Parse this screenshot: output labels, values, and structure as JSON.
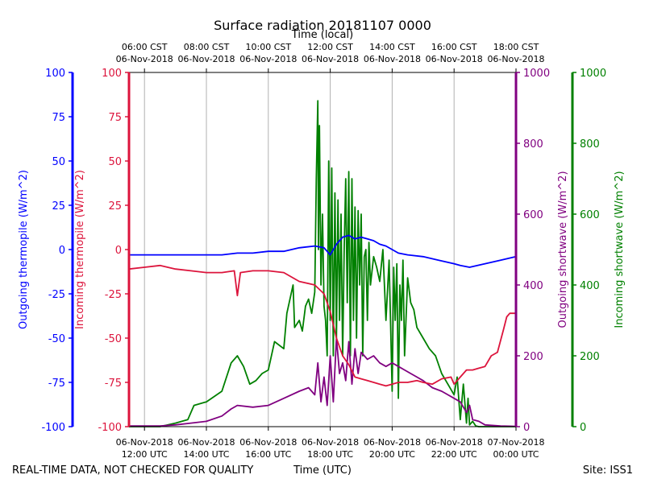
{
  "colors": {
    "outgoing_thermopile": "#0000ff",
    "incoming_thermopile": "#dc143c",
    "outgoing_shortwave": "#800080",
    "incoming_shortwave": "#008000",
    "grid": "#b0b0b0",
    "text": "#000000"
  },
  "footer": {
    "left": "REAL-TIME DATA, NOT CHECKED FOR QUALITY",
    "right": "Site: ISS1"
  },
  "chart_data": {
    "type": "line",
    "title": "Surface radiation 20181107 0000",
    "xlabel": "Time (UTC)",
    "x2label": "Time (local)",
    "x_domain_utc_hours": [
      11.5,
      24.0
    ],
    "bottom_ticks": [
      {
        "hour": 12,
        "line1": "06-Nov-2018",
        "line2": "12:00 UTC"
      },
      {
        "hour": 14,
        "line1": "06-Nov-2018",
        "line2": "14:00 UTC"
      },
      {
        "hour": 16,
        "line1": "06-Nov-2018",
        "line2": "16:00 UTC"
      },
      {
        "hour": 18,
        "line1": "06-Nov-2018",
        "line2": "18:00 UTC"
      },
      {
        "hour": 20,
        "line1": "06-Nov-2018",
        "line2": "20:00 UTC"
      },
      {
        "hour": 22,
        "line1": "06-Nov-2018",
        "line2": "22:00 UTC"
      },
      {
        "hour": 24,
        "line1": "07-Nov-2018",
        "line2": "00:00 UTC"
      }
    ],
    "top_ticks": [
      {
        "hour": 12,
        "line1": "06:00 CST",
        "line2": "06-Nov-2018"
      },
      {
        "hour": 14,
        "line1": "08:00 CST",
        "line2": "06-Nov-2018"
      },
      {
        "hour": 16,
        "line1": "10:00 CST",
        "line2": "06-Nov-2018"
      },
      {
        "hour": 18,
        "line1": "12:00 CST",
        "line2": "06-Nov-2018"
      },
      {
        "hour": 20,
        "line1": "14:00 CST",
        "line2": "06-Nov-2018"
      },
      {
        "hour": 22,
        "line1": "16:00 CST",
        "line2": "06-Nov-2018"
      },
      {
        "hour": 24,
        "line1": "18:00 CST",
        "line2": "06-Nov-2018"
      }
    ],
    "axes": {
      "outgoing_thermopile": {
        "label": "Outgoing thermopile (W/m^2)",
        "ylim": [
          -100,
          100
        ],
        "ticks": [
          -100,
          -75,
          -50,
          -25,
          0,
          25,
          50,
          75,
          100
        ]
      },
      "incoming_thermopile": {
        "label": "Incoming thermopile (W/m^2)",
        "ylim": [
          -100,
          100
        ],
        "ticks": [
          -100,
          -75,
          -50,
          -25,
          0,
          25,
          50,
          75,
          100
        ]
      },
      "outgoing_shortwave": {
        "label": "Outgoing shortwave (W/m^2)",
        "ylim": [
          0,
          1000
        ],
        "ticks": [
          0,
          200,
          400,
          600,
          800,
          1000
        ]
      },
      "incoming_shortwave": {
        "label": "Incoming shortwave (W/m^2)",
        "ylim": [
          0,
          1000
        ],
        "ticks": [
          0,
          200,
          400,
          600,
          800,
          1000
        ]
      }
    },
    "series": [
      {
        "name": "Incoming shortwave",
        "axis": "incoming_shortwave",
        "x": [
          11.5,
          12.5,
          13.0,
          13.4,
          13.6,
          14.0,
          14.5,
          14.8,
          15.0,
          15.2,
          15.4,
          15.6,
          15.8,
          16.0,
          16.2,
          16.5,
          16.6,
          16.8,
          16.85,
          17.0,
          17.1,
          17.2,
          17.3,
          17.4,
          17.5,
          17.55,
          17.6,
          17.62,
          17.65,
          17.7,
          17.75,
          17.8,
          17.85,
          17.9,
          17.95,
          18.0,
          18.05,
          18.1,
          18.15,
          18.2,
          18.25,
          18.3,
          18.35,
          18.4,
          18.45,
          18.5,
          18.55,
          18.6,
          18.65,
          18.7,
          18.75,
          18.8,
          18.85,
          18.9,
          18.95,
          19.0,
          19.05,
          19.1,
          19.15,
          19.2,
          19.25,
          19.3,
          19.4,
          19.5,
          19.6,
          19.7,
          19.8,
          19.9,
          20.0,
          20.05,
          20.1,
          20.15,
          20.2,
          20.25,
          20.3,
          20.35,
          20.4,
          20.5,
          20.6,
          20.7,
          20.8,
          21.0,
          21.2,
          21.4,
          21.6,
          21.8,
          22.0,
          22.1,
          22.2,
          22.3,
          22.4,
          22.45,
          22.5,
          22.6,
          22.7,
          22.8,
          23.0,
          23.5,
          24.0
        ],
        "values": [
          0,
          0,
          10,
          20,
          60,
          70,
          100,
          180,
          200,
          170,
          120,
          130,
          150,
          160,
          240,
          220,
          320,
          400,
          280,
          300,
          270,
          340,
          360,
          320,
          380,
          700,
          920,
          500,
          850,
          400,
          600,
          340,
          300,
          200,
          750,
          300,
          730,
          200,
          660,
          250,
          640,
          300,
          600,
          200,
          500,
          700,
          350,
          720,
          200,
          700,
          300,
          620,
          250,
          610,
          400,
          600,
          200,
          480,
          500,
          300,
          520,
          400,
          480,
          450,
          410,
          500,
          300,
          470,
          100,
          450,
          300,
          460,
          80,
          400,
          300,
          470,
          200,
          420,
          350,
          330,
          280,
          250,
          220,
          200,
          150,
          120,
          90,
          140,
          20,
          120,
          10,
          80,
          5,
          15,
          2,
          0,
          0,
          0,
          0
        ]
      },
      {
        "name": "Outgoing shortwave",
        "axis": "outgoing_shortwave",
        "x": [
          11.5,
          12.5,
          13.0,
          13.5,
          14.0,
          14.5,
          14.8,
          15.0,
          15.5,
          16.0,
          16.5,
          17.0,
          17.3,
          17.5,
          17.6,
          17.7,
          17.8,
          17.9,
          18.0,
          18.1,
          18.2,
          18.3,
          18.4,
          18.5,
          18.6,
          18.7,
          18.8,
          18.9,
          19.0,
          19.2,
          19.4,
          19.6,
          19.8,
          20.0,
          20.2,
          20.4,
          20.6,
          20.8,
          21.0,
          21.3,
          21.6,
          21.8,
          22.0,
          22.2,
          22.4,
          22.5,
          22.6,
          22.8,
          23.0,
          23.5,
          24.0
        ],
        "values": [
          2,
          2,
          5,
          10,
          15,
          30,
          50,
          60,
          55,
          60,
          80,
          100,
          110,
          90,
          180,
          70,
          140,
          60,
          200,
          70,
          250,
          150,
          180,
          130,
          240,
          120,
          220,
          150,
          210,
          190,
          200,
          180,
          170,
          180,
          170,
          160,
          150,
          140,
          130,
          110,
          100,
          90,
          80,
          70,
          40,
          60,
          20,
          15,
          5,
          2,
          1
        ]
      },
      {
        "name": "Incoming thermopile",
        "axis": "incoming_thermopile",
        "x": [
          11.5,
          12.0,
          12.5,
          13.0,
          13.5,
          14.0,
          14.5,
          14.9,
          15.0,
          15.1,
          15.5,
          16.0,
          16.5,
          17.0,
          17.5,
          17.8,
          18.0,
          18.2,
          18.4,
          18.6,
          18.8,
          19.0,
          19.2,
          19.4,
          19.6,
          19.8,
          20.0,
          20.2,
          20.5,
          20.8,
          21.0,
          21.3,
          21.6,
          21.9,
          22.0,
          22.2,
          22.4,
          22.6,
          22.8,
          23.0,
          23.2,
          23.4,
          23.6,
          23.7,
          23.8,
          24.0
        ],
        "values": [
          -11,
          -10,
          -9,
          -11,
          -12,
          -13,
          -13,
          -12,
          -26,
          -13,
          -12,
          -12,
          -13,
          -18,
          -20,
          -25,
          -35,
          -50,
          -60,
          -65,
          -72,
          -73,
          -74,
          -75,
          -76,
          -77,
          -76,
          -75,
          -75,
          -74,
          -75,
          -76,
          -73,
          -72,
          -76,
          -72,
          -68,
          -68,
          -67,
          -66,
          -60,
          -58,
          -45,
          -38,
          -36,
          -36
        ]
      },
      {
        "name": "Outgoing thermopile",
        "axis": "outgoing_thermopile",
        "x": [
          11.5,
          12.0,
          12.5,
          13.0,
          13.5,
          14.0,
          14.5,
          15.0,
          15.5,
          16.0,
          16.5,
          17.0,
          17.5,
          17.8,
          18.0,
          18.2,
          18.4,
          18.6,
          18.8,
          19.0,
          19.2,
          19.4,
          19.6,
          19.8,
          20.0,
          20.2,
          20.5,
          21.0,
          21.5,
          22.0,
          22.2,
          22.5,
          23.0,
          23.5,
          24.0
        ],
        "values": [
          -3,
          -3,
          -3,
          -3,
          -3,
          -3,
          -3,
          -2,
          -2,
          -1,
          -1,
          1,
          2,
          1,
          -3,
          3,
          7,
          8,
          6,
          7,
          6,
          5,
          3,
          2,
          0,
          -2,
          -3,
          -4,
          -6,
          -8,
          -9,
          -10,
          -8,
          -6,
          -4
        ]
      }
    ]
  }
}
